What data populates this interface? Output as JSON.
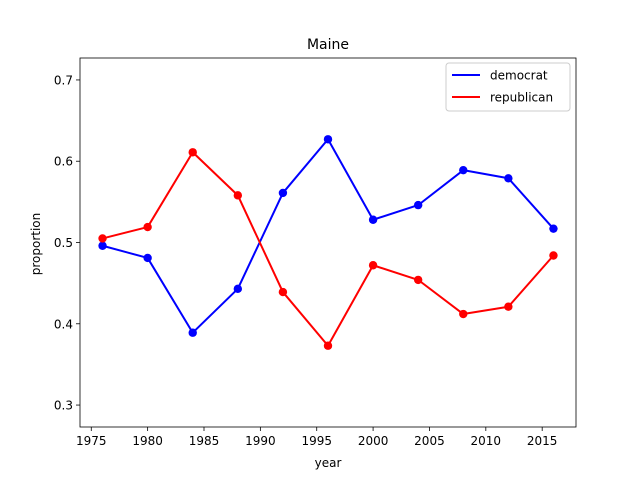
{
  "chart_data": {
    "type": "line",
    "title": "Maine",
    "xlabel": "year",
    "ylabel": "proportion",
    "xlim": [
      1974.0,
      2018.0
    ],
    "ylim": [
      0.273,
      0.727
    ],
    "xticks": [
      1975,
      1980,
      1985,
      1990,
      1995,
      2000,
      2005,
      2010,
      2015
    ],
    "yticks": [
      0.3,
      0.4,
      0.5,
      0.6,
      0.7
    ],
    "grid": false,
    "legend_position": "top-right",
    "x": [
      1976,
      1980,
      1984,
      1988,
      1992,
      1996,
      2000,
      2004,
      2008,
      2012,
      2016
    ],
    "series": [
      {
        "name": "democrat",
        "color": "#0000ff",
        "values": [
          0.496,
          0.481,
          0.389,
          0.443,
          0.561,
          0.627,
          0.528,
          0.546,
          0.589,
          0.579,
          0.517
        ]
      },
      {
        "name": "republican",
        "color": "#ff0000",
        "values": [
          0.505,
          0.519,
          0.611,
          0.558,
          0.439,
          0.373,
          0.472,
          0.454,
          0.412,
          0.421,
          0.484
        ]
      }
    ]
  }
}
